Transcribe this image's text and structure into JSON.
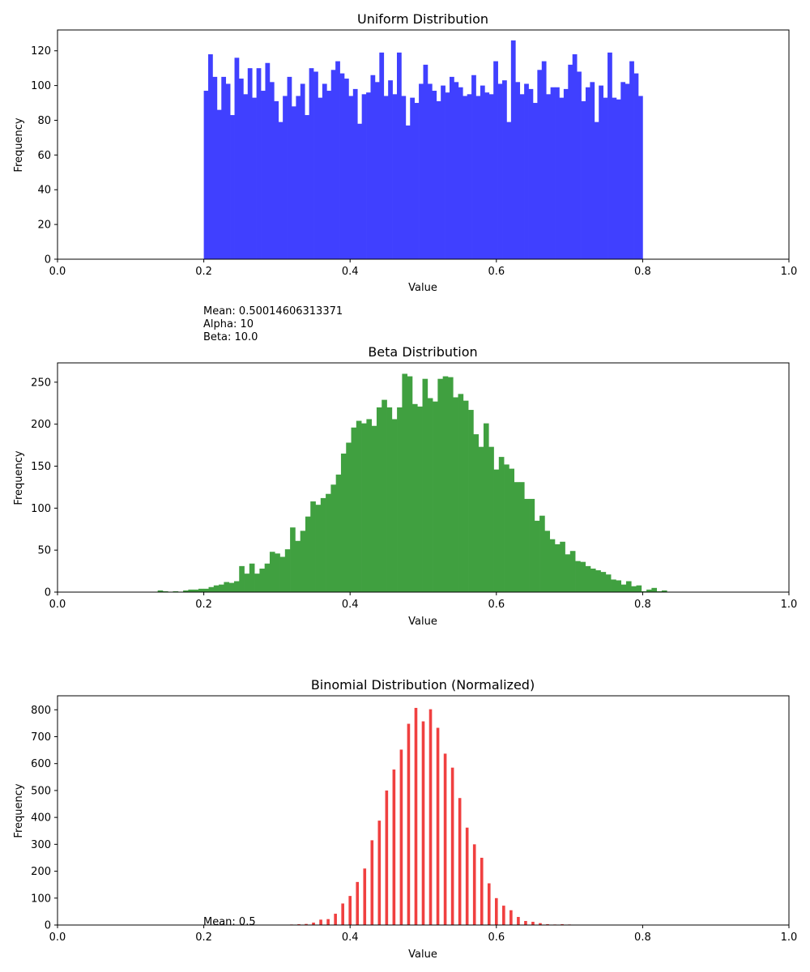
{
  "chart_data": [
    {
      "type": "bar",
      "title": "Uniform Distribution",
      "xlabel": "Value",
      "ylabel": "Frequency",
      "xlim": [
        0,
        1
      ],
      "ylim": [
        0,
        132
      ],
      "xticks": [
        "0.0",
        "0.2",
        "0.4",
        "0.6",
        "0.8",
        "1.0"
      ],
      "yticks": [
        0,
        20,
        40,
        60,
        80,
        100,
        120
      ],
      "color": "#4040ff",
      "bin_range": [
        0.2,
        0.8
      ],
      "values": [
        97,
        118,
        105,
        86,
        105,
        101,
        83,
        116,
        104,
        95,
        110,
        93,
        110,
        97,
        113,
        102,
        91,
        79,
        94,
        105,
        88,
        94,
        101,
        83,
        110,
        108,
        93,
        101,
        97,
        109,
        114,
        107,
        104,
        94,
        98,
        78,
        95,
        96,
        106,
        102,
        119,
        94,
        103,
        95,
        119,
        94,
        77,
        93,
        90,
        101,
        112,
        101,
        97,
        91,
        100,
        96,
        105,
        102,
        99,
        94,
        95,
        106,
        94,
        100,
        96,
        95,
        114,
        101,
        103,
        79,
        126,
        102,
        95,
        101,
        98,
        90,
        109,
        114,
        95,
        99,
        99,
        93,
        98,
        112,
        118,
        108,
        91,
        99,
        102,
        79,
        100,
        93,
        119,
        93,
        92,
        102,
        101,
        114,
        107,
        94
      ],
      "annotations": []
    },
    {
      "type": "bar",
      "title": "Beta Distribution",
      "xlabel": "Value",
      "ylabel": "Frequency",
      "xlim": [
        0,
        1
      ],
      "ylim": [
        0,
        273
      ],
      "xticks": [
        "0.0",
        "0.2",
        "0.4",
        "0.6",
        "0.8",
        "1.0"
      ],
      "yticks": [
        0,
        50,
        100,
        150,
        200,
        250
      ],
      "color": "#40a040",
      "bin_range": [
        0.13,
        0.84
      ],
      "values": [
        0,
        2,
        1,
        0,
        1,
        0,
        2,
        3,
        3,
        4,
        4,
        6,
        8,
        9,
        12,
        11,
        13,
        31,
        22,
        34,
        22,
        28,
        34,
        48,
        46,
        42,
        51,
        77,
        61,
        73,
        90,
        108,
        104,
        112,
        117,
        128,
        140,
        165,
        178,
        196,
        204,
        201,
        206,
        198,
        220,
        229,
        220,
        206,
        220,
        260,
        257,
        224,
        221,
        254,
        231,
        227,
        254,
        257,
        256,
        232,
        236,
        228,
        217,
        188,
        173,
        201,
        173,
        146,
        161,
        152,
        147,
        131,
        131,
        111,
        111,
        85,
        91,
        73,
        63,
        57,
        60,
        45,
        49,
        37,
        36,
        31,
        28,
        26,
        24,
        21,
        15,
        14,
        9,
        13,
        7,
        8,
        1,
        3,
        5,
        1,
        2,
        0
      ],
      "annotations": [
        "Mean: 0.50014606313371",
        "Alpha: 10",
        "Beta: 10.0"
      ]
    },
    {
      "type": "bar",
      "title": "Binomial Distribution (Normalized)",
      "xlabel": "Value",
      "ylabel": "Frequency",
      "xlim": [
        0,
        1
      ],
      "ylim": [
        0,
        852
      ],
      "xticks": [
        "0.0",
        "0.2",
        "0.4",
        "0.6",
        "0.8",
        "1.0"
      ],
      "yticks": [
        0,
        100,
        200,
        300,
        400,
        500,
        600,
        700,
        800
      ],
      "color": "#f04040",
      "bar_width": 0.004,
      "x": [
        0.32,
        0.33,
        0.34,
        0.35,
        0.36,
        0.37,
        0.38,
        0.39,
        0.4,
        0.41,
        0.42,
        0.43,
        0.44,
        0.45,
        0.46,
        0.47,
        0.48,
        0.49,
        0.5,
        0.51,
        0.52,
        0.53,
        0.54,
        0.55,
        0.56,
        0.57,
        0.58,
        0.59,
        0.6,
        0.61,
        0.62,
        0.63,
        0.64,
        0.65,
        0.66,
        0.67,
        0.68,
        0.69,
        0.7
      ],
      "values": [
        2,
        3,
        4,
        9,
        20,
        22,
        42,
        80,
        108,
        160,
        210,
        315,
        388,
        500,
        578,
        652,
        748,
        807,
        757,
        802,
        733,
        637,
        585,
        472,
        362,
        300,
        250,
        155,
        100,
        72,
        55,
        30,
        15,
        12,
        7,
        3,
        2,
        3,
        2
      ],
      "annotations": [
        "Mean: 0.5"
      ]
    }
  ]
}
